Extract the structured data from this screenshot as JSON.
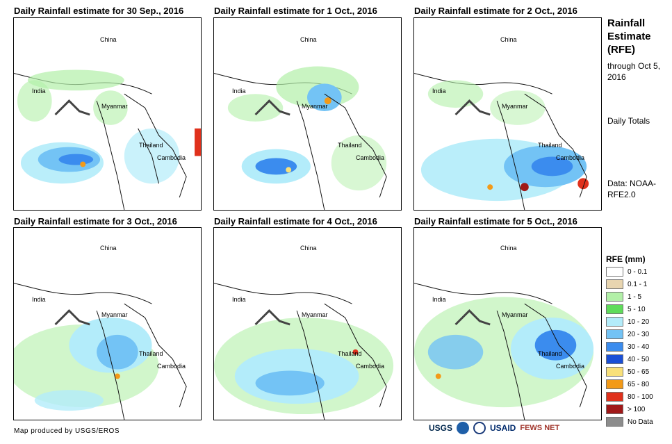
{
  "panels": [
    {
      "title": "Daily Rainfall estimate for 30 Sep., 2016"
    },
    {
      "title": "Daily Rainfall estimate for 1 Oct., 2016"
    },
    {
      "title": "Daily Rainfall estimate for 2 Oct., 2016"
    },
    {
      "title": "Daily Rainfall estimate for 3 Oct., 2016"
    },
    {
      "title": "Daily Rainfall estimate for 4 Oct., 2016"
    },
    {
      "title": "Daily Rainfall estimate for 5 Oct., 2016"
    }
  ],
  "places": {
    "china": "China",
    "india": "India",
    "myanmar": "Myanmar",
    "thailand": "Thailand",
    "cambodia": "Cambodia"
  },
  "sidebar": {
    "title": "Rainfall Estimate (RFE)",
    "through": "through Oct 5, 2016",
    "daily": "Daily Totals",
    "data_source": "Data: NOAA-RFE2.0"
  },
  "legend": {
    "title": "RFE (mm)",
    "items": [
      {
        "label": "0 - 0.1",
        "color": "#ffffff"
      },
      {
        "label": "0.1 - 1",
        "color": "#e8d5b0"
      },
      {
        "label": "1 - 5",
        "color": "#b2f0a8"
      },
      {
        "label": "5 - 10",
        "color": "#5fdc5a"
      },
      {
        "label": "10 - 20",
        "color": "#b3ecfa"
      },
      {
        "label": "20 - 30",
        "color": "#73c3f5"
      },
      {
        "label": "30 - 40",
        "color": "#3b8cee"
      },
      {
        "label": "40 - 50",
        "color": "#1a4fd6"
      },
      {
        "label": "50 - 65",
        "color": "#f8e07a"
      },
      {
        "label": "65 - 80",
        "color": "#f39a18"
      },
      {
        "label": "80 - 100",
        "color": "#e0311c"
      },
      {
        "label": "> 100",
        "color": "#a01818"
      },
      {
        "label": "No Data",
        "color": "#8c8c8c"
      }
    ]
  },
  "credit": "Map produced by USGS/EROS",
  "logos": {
    "usgs": "USGS",
    "usaid": "USAID",
    "fewsnet": "FEWS NET"
  }
}
